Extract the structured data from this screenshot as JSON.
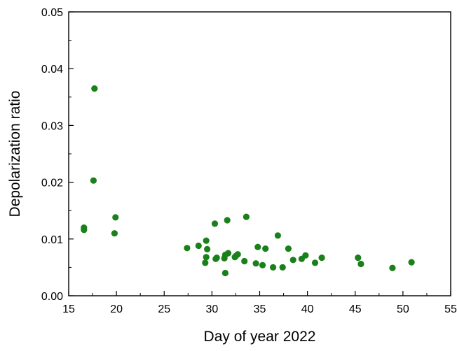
{
  "chart_data": {
    "type": "scatter",
    "xlabel": "Day of year 2022",
    "ylabel": "Depolarization ratio",
    "xlim": [
      15,
      55
    ],
    "ylim": [
      0.0,
      0.05
    ],
    "xticks": [
      15,
      20,
      25,
      30,
      35,
      40,
      45,
      50,
      55
    ],
    "xtick_labels": [
      "15",
      "20",
      "25",
      "30",
      "35",
      "40",
      "45",
      "50",
      "55"
    ],
    "yticks": [
      0.0,
      0.01,
      0.02,
      0.03,
      0.04,
      0.05
    ],
    "ytick_labels": [
      "0.00",
      "0.01",
      "0.02",
      "0.03",
      "0.04",
      "0.05"
    ],
    "grid": false,
    "marker_color": "#1a801a",
    "series": [
      {
        "x": [
          16.6,
          16.6,
          17.6,
          17.7,
          19.8,
          19.9,
          27.4,
          28.6,
          29.3,
          29.4,
          29.4,
          29.5,
          30.3,
          30.4,
          30.5,
          31.3,
          31.4,
          31.4,
          31.6,
          31.7,
          32.4,
          32.5,
          32.7,
          33.4,
          33.6,
          34.6,
          34.8,
          35.3,
          35.6,
          36.4,
          36.9,
          37.4,
          38.0,
          38.5,
          39.4,
          39.8,
          40.8,
          41.5,
          45.3,
          45.6,
          48.9,
          50.9
        ],
        "y": [
          0.0116,
          0.012,
          0.0203,
          0.0365,
          0.011,
          0.0138,
          0.0084,
          0.0088,
          0.0058,
          0.0068,
          0.0097,
          0.0082,
          0.0127,
          0.0065,
          0.0067,
          0.0066,
          0.0072,
          0.004,
          0.0133,
          0.0075,
          0.0068,
          0.007,
          0.0073,
          0.0061,
          0.0139,
          0.0057,
          0.0086,
          0.0054,
          0.0083,
          0.005,
          0.0106,
          0.005,
          0.0083,
          0.0063,
          0.0065,
          0.0071,
          0.0058,
          0.0067,
          0.0067,
          0.0056,
          0.0049,
          0.0059
        ]
      }
    ]
  }
}
